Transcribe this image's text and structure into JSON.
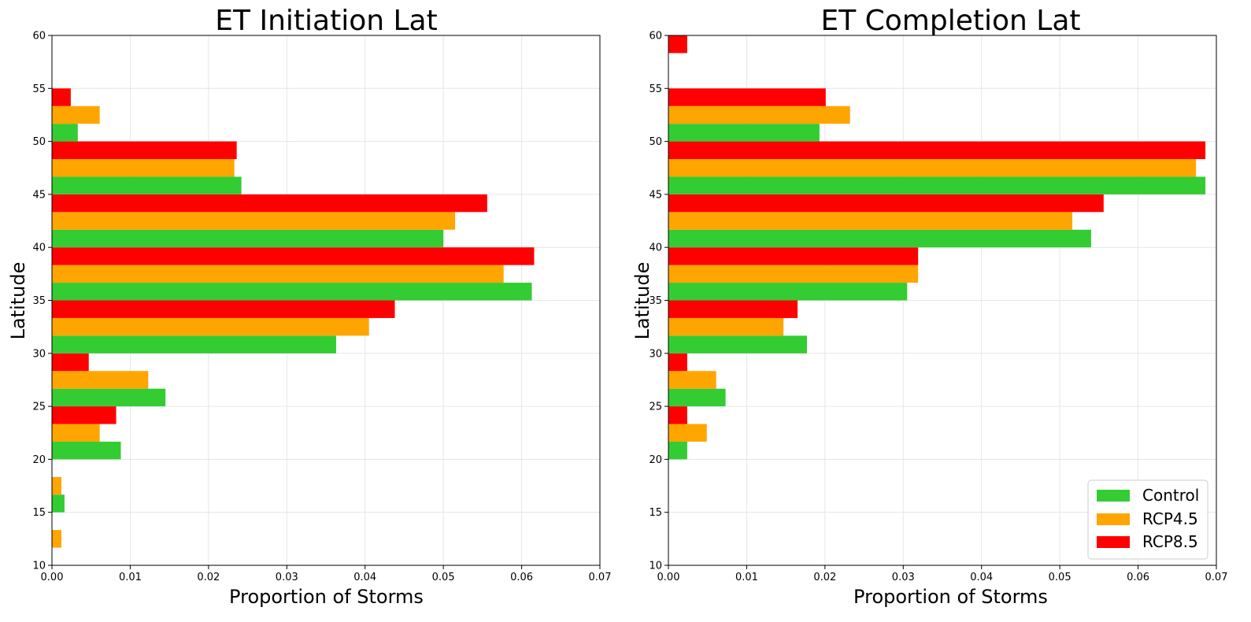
{
  "chart_data": [
    {
      "type": "bar",
      "orientation": "horizontal",
      "title": "ET Initiation Lat",
      "xlabel": "Proportion of Storms",
      "ylabel": "Latitude",
      "xlim": [
        0,
        0.07
      ],
      "ylim": [
        10,
        60
      ],
      "xticks": [
        "0.00",
        "0.01",
        "0.02",
        "0.03",
        "0.04",
        "0.05",
        "0.06",
        "0.07"
      ],
      "yticks": [
        "10",
        "15",
        "20",
        "25",
        "30",
        "35",
        "40",
        "45",
        "50",
        "55",
        "60"
      ],
      "grid": true,
      "bin_width": 5,
      "categories": [
        10,
        15,
        20,
        25,
        30,
        35,
        40,
        45,
        50,
        55
      ],
      "series": [
        {
          "name": "Control",
          "color": "#33cc33",
          "values": [
            0,
            0.0016,
            0.0088,
            0.0145,
            0.0363,
            0.0613,
            0.05,
            0.0242,
            0.0033,
            0
          ]
        },
        {
          "name": "RCP4.5",
          "color": "#ffa500",
          "values": [
            0.0012,
            0.0012,
            0.0061,
            0.0123,
            0.0405,
            0.0577,
            0.0515,
            0.0233,
            0.0061,
            0
          ]
        },
        {
          "name": "RCP8.5",
          "color": "#ff0000",
          "values": [
            0,
            0,
            0.0082,
            0.0047,
            0.0438,
            0.0616,
            0.0556,
            0.0236,
            0.0024,
            0
          ]
        }
      ]
    },
    {
      "type": "bar",
      "orientation": "horizontal",
      "title": "ET Completion Lat",
      "xlabel": "Proportion of Storms",
      "ylabel": "Latitude",
      "xlim": [
        0,
        0.07
      ],
      "ylim": [
        10,
        60
      ],
      "xticks": [
        "0.00",
        "0.01",
        "0.02",
        "0.03",
        "0.04",
        "0.05",
        "0.06",
        "0.07"
      ],
      "yticks": [
        "10",
        "15",
        "20",
        "25",
        "30",
        "35",
        "40",
        "45",
        "50",
        "55",
        "60"
      ],
      "grid": true,
      "bin_width": 5,
      "legend": {
        "placement": "lower-right",
        "entries": [
          "Control",
          "RCP4.5",
          "RCP8.5"
        ]
      },
      "categories": [
        10,
        15,
        20,
        25,
        30,
        35,
        40,
        45,
        50,
        55
      ],
      "series": [
        {
          "name": "Control",
          "color": "#33cc33",
          "values": [
            0,
            0,
            0.0024,
            0.0073,
            0.0177,
            0.0305,
            0.054,
            0.0686,
            0.0193,
            0
          ]
        },
        {
          "name": "RCP4.5",
          "color": "#ffa500",
          "values": [
            0,
            0,
            0.0049,
            0.0061,
            0.0147,
            0.0319,
            0.0516,
            0.0674,
            0.0232,
            0
          ]
        },
        {
          "name": "RCP8.5",
          "color": "#ff0000",
          "values": [
            0,
            0,
            0.0024,
            0.0024,
            0.0165,
            0.0319,
            0.0556,
            0.0686,
            0.0201,
            0.0024
          ]
        }
      ]
    }
  ]
}
